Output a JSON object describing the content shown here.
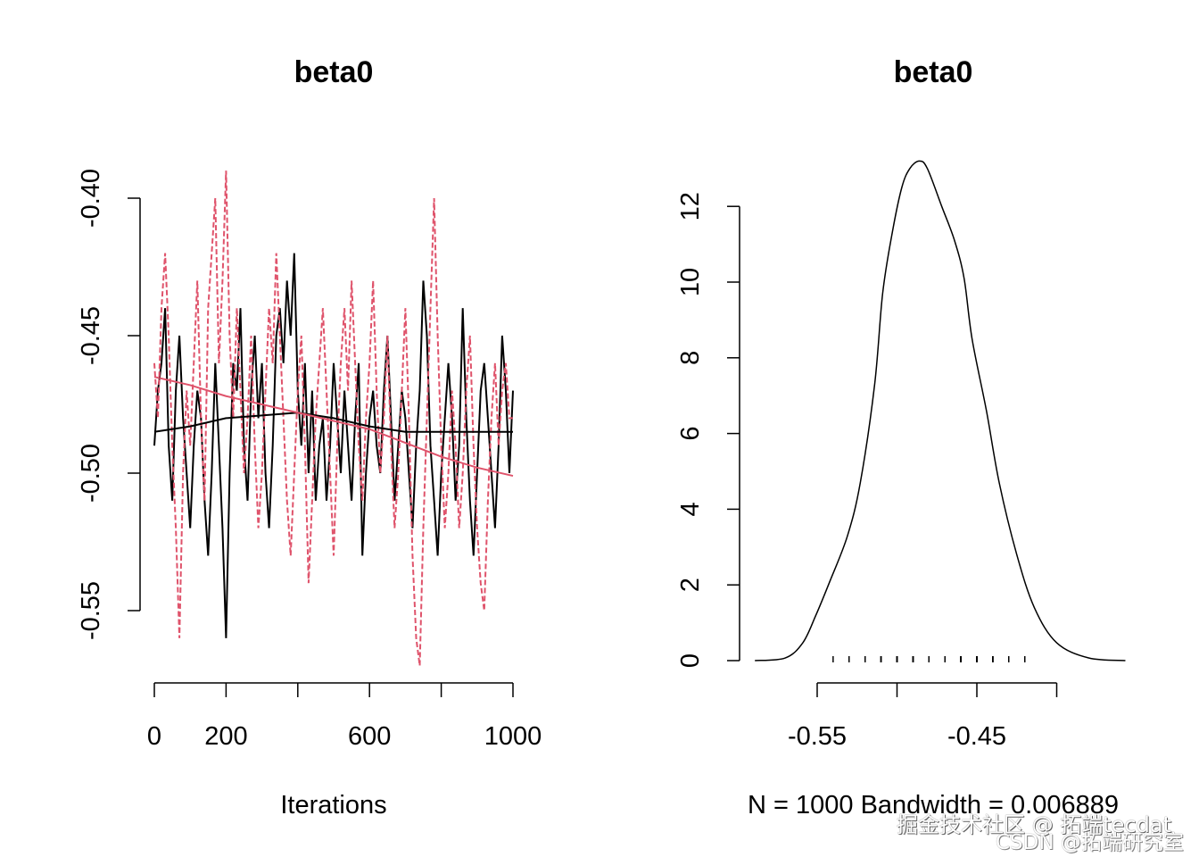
{
  "chart_data": [
    {
      "type": "line",
      "title": "beta0",
      "xlabel": "Iterations",
      "ylabel": "",
      "xlim": [
        0,
        1000
      ],
      "ylim": [
        -0.565,
        -0.395
      ],
      "xticks": [
        0,
        200,
        400,
        600,
        800,
        1000
      ],
      "xtick_labels": [
        "0",
        "200",
        "",
        "600",
        "",
        "1000"
      ],
      "yticks": [
        -0.4,
        -0.45,
        -0.5,
        -0.55
      ],
      "ytick_labels": [
        "-0.40",
        "-0.45",
        "-0.50",
        "-0.55"
      ],
      "grid": false,
      "series": [
        {
          "color": "#000000",
          "style": "solid",
          "values": [
            -0.49,
            -0.47,
            -0.46,
            -0.44,
            -0.49,
            -0.51,
            -0.47,
            -0.45,
            -0.48,
            -0.5,
            -0.52,
            -0.49,
            -0.47,
            -0.48,
            -0.51,
            -0.53,
            -0.5,
            -0.46,
            -0.49,
            -0.52,
            -0.56,
            -0.5,
            -0.46,
            -0.47,
            -0.44,
            -0.49,
            -0.51,
            -0.47,
            -0.45,
            -0.48,
            -0.46,
            -0.5,
            -0.52,
            -0.49,
            -0.45,
            -0.44,
            -0.46,
            -0.43,
            -0.45,
            -0.42,
            -0.47,
            -0.49,
            -0.46,
            -0.5,
            -0.47,
            -0.51,
            -0.49,
            -0.48,
            -0.51,
            -0.49,
            -0.46,
            -0.48,
            -0.5,
            -0.47,
            -0.49,
            -0.51,
            -0.48,
            -0.46,
            -0.53,
            -0.5,
            -0.48,
            -0.47,
            -0.49,
            -0.5,
            -0.47,
            -0.45,
            -0.48,
            -0.51,
            -0.49,
            -0.47,
            -0.48,
            -0.5,
            -0.52,
            -0.49,
            -0.47,
            -0.43,
            -0.45,
            -0.49,
            -0.51,
            -0.53,
            -0.5,
            -0.48,
            -0.46,
            -0.48,
            -0.51,
            -0.49,
            -0.44,
            -0.48,
            -0.51,
            -0.53,
            -0.5,
            -0.47,
            -0.46,
            -0.48,
            -0.5,
            -0.52,
            -0.49,
            -0.45,
            -0.47,
            -0.5,
            -0.47
          ]
        },
        {
          "color": "#DF536B",
          "style": "dashed",
          "values": [
            -0.46,
            -0.48,
            -0.44,
            -0.42,
            -0.45,
            -0.49,
            -0.52,
            -0.56,
            -0.5,
            -0.47,
            -0.49,
            -0.46,
            -0.43,
            -0.48,
            -0.51,
            -0.44,
            -0.42,
            -0.4,
            -0.46,
            -0.43,
            -0.39,
            -0.45,
            -0.48,
            -0.44,
            -0.47,
            -0.5,
            -0.48,
            -0.45,
            -0.49,
            -0.52,
            -0.5,
            -0.47,
            -0.44,
            -0.46,
            -0.42,
            -0.45,
            -0.48,
            -0.51,
            -0.53,
            -0.5,
            -0.47,
            -0.45,
            -0.49,
            -0.54,
            -0.51,
            -0.48,
            -0.46,
            -0.44,
            -0.47,
            -0.5,
            -0.53,
            -0.49,
            -0.46,
            -0.44,
            -0.47,
            -0.43,
            -0.46,
            -0.49,
            -0.51,
            -0.48,
            -0.46,
            -0.43,
            -0.47,
            -0.5,
            -0.48,
            -0.45,
            -0.49,
            -0.52,
            -0.5,
            -0.47,
            -0.44,
            -0.48,
            -0.53,
            -0.56,
            -0.57,
            -0.52,
            -0.48,
            -0.44,
            -0.4,
            -0.45,
            -0.49,
            -0.52,
            -0.5,
            -0.47,
            -0.49,
            -0.52,
            -0.5,
            -0.47,
            -0.45,
            -0.49,
            -0.52,
            -0.54,
            -0.55,
            -0.51,
            -0.48,
            -0.46,
            -0.49,
            -0.47,
            -0.46,
            -0.48,
            -0.48
          ]
        }
      ],
      "smooth": [
        {
          "color": "#000000",
          "x": [
            0,
            100,
            200,
            300,
            400,
            500,
            600,
            700,
            800,
            900,
            1000
          ],
          "y": [
            -0.485,
            -0.483,
            -0.48,
            -0.479,
            -0.478,
            -0.48,
            -0.483,
            -0.485,
            -0.485,
            -0.485,
            -0.485
          ]
        },
        {
          "color": "#DF536B",
          "x": [
            0,
            100,
            200,
            300,
            400,
            500,
            600,
            700,
            800,
            900,
            1000
          ],
          "y": [
            -0.465,
            -0.468,
            -0.472,
            -0.475,
            -0.478,
            -0.481,
            -0.484,
            -0.489,
            -0.494,
            -0.498,
            -0.501
          ]
        }
      ]
    },
    {
      "type": "area",
      "title": "beta0",
      "xlabel": "N = 1000   Bandwidth = 0.006889",
      "xlim": [
        -0.59,
        -0.355
      ],
      "ylim": [
        0,
        13.3
      ],
      "xticks": [
        -0.55,
        -0.5,
        -0.45,
        -0.4
      ],
      "xtick_labels": [
        "-0.55",
        "",
        "-0.45",
        ""
      ],
      "yticks": [
        0,
        2,
        4,
        6,
        8,
        10,
        12
      ],
      "ytick_labels": [
        "0",
        "2",
        "4",
        "6",
        "8",
        "10",
        "12"
      ],
      "grid": false,
      "color": "#000000",
      "x": [
        -0.589,
        -0.57,
        -0.559,
        -0.551,
        -0.542,
        -0.531,
        -0.523,
        -0.514,
        -0.509,
        -0.503,
        -0.497,
        -0.492,
        -0.486,
        -0.481,
        -0.472,
        -0.464,
        -0.458,
        -0.453,
        -0.444,
        -0.436,
        -0.425,
        -0.414,
        -0.4,
        -0.38,
        -0.357
      ],
      "y": [
        0,
        0.07,
        0.47,
        1.18,
        2.1,
        3.3,
        4.7,
        7.3,
        9.7,
        11.3,
        12.5,
        13.0,
        13.2,
        13.0,
        12.0,
        11.1,
        10.1,
        8.5,
        6.6,
        4.7,
        2.8,
        1.4,
        0.47,
        0.07,
        0
      ],
      "rug": "samples"
    }
  ],
  "watermark": {
    "line1": "掘金技术社区 @ 拓端tecdat",
    "line2": "CSDN @拓端研究室"
  }
}
